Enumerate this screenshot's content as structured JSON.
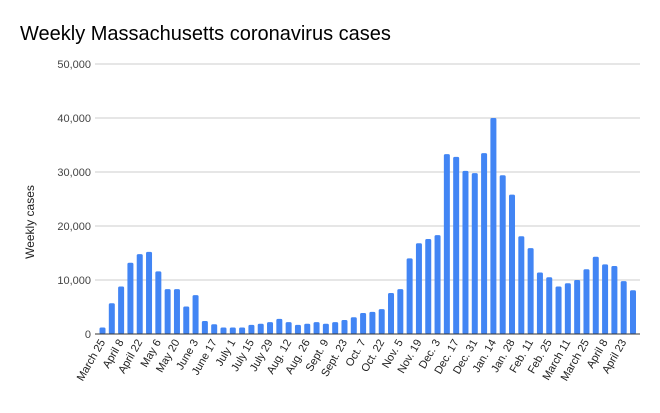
{
  "chart_data": {
    "type": "bar",
    "title": "Weekly Massachusetts coronavirus cases",
    "xlabel": "",
    "ylabel": "Weekly cases",
    "ylim": [
      0,
      50000
    ],
    "yticks": [
      0,
      10000,
      20000,
      30000,
      40000,
      50000
    ],
    "ytick_labels": [
      "0",
      "10,000",
      "20,000",
      "30,000",
      "40,000",
      "50,000"
    ],
    "grid": true,
    "legend": "none",
    "bar_color": "#4285f4",
    "categories": [
      "March 25",
      "",
      "April 8",
      "",
      "April 22",
      "",
      "May 6",
      "",
      "May 20",
      "",
      "June 3",
      "",
      "June 17",
      "",
      "July 1",
      "",
      "July 15",
      "",
      "July 29",
      "",
      "Aug. 12",
      "",
      "Aug. 26",
      "",
      "Sept. 9",
      "",
      "Sept. 23",
      "",
      "Oct. 7",
      "",
      "Oct. 22",
      "",
      "Nov. 5",
      "",
      "Nov. 19",
      "",
      "Dec. 3",
      "",
      "Dec. 17",
      "",
      "Dec. 31",
      "",
      "Jan. 14",
      "",
      "Jan. 28",
      "",
      "Feb. 11",
      "",
      "Feb. 25",
      "",
      "March 11",
      "",
      "March 25",
      "",
      "April 8",
      "",
      "April 23",
      ""
    ],
    "values": [
      1200,
      5700,
      8800,
      13200,
      14800,
      15200,
      11600,
      8300,
      8300,
      5100,
      7200,
      2400,
      1800,
      1200,
      1200,
      1200,
      1700,
      1900,
      2200,
      2800,
      2200,
      1700,
      1900,
      2200,
      1900,
      2200,
      2600,
      3100,
      3900,
      4100,
      4600,
      7600,
      8300,
      14000,
      16800,
      17600,
      18300,
      33300,
      32800,
      30200,
      29800,
      33500,
      40000,
      29400,
      25800,
      18100,
      15900,
      11400,
      10500,
      8800,
      9400,
      10000,
      12000,
      14300,
      12900,
      12600,
      9800,
      8100
    ]
  }
}
